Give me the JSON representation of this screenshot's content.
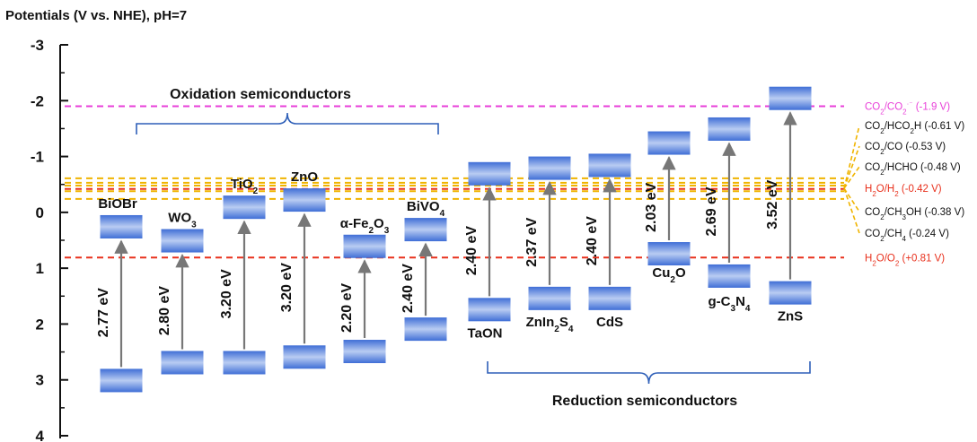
{
  "chart_data": {
    "type": "band-diagram",
    "title": "Potentials (V vs. NHE), pH=7",
    "ylim": [
      -3,
      4
    ],
    "y_axis_inverted": true,
    "y_ticks": [
      -3,
      -2,
      -1,
      0,
      1,
      2,
      3,
      4
    ],
    "y_tick_labels": [
      "-3",
      "-2",
      "-1",
      "0",
      "1",
      "2",
      "3",
      "4"
    ],
    "groups": [
      {
        "label": "Oxidation semiconductors",
        "span": [
          "BiOBr",
          "BiVO4"
        ],
        "position": "top"
      },
      {
        "label": "Reduction semiconductors",
        "span": [
          "TaON",
          "ZnS"
        ],
        "position": "bottom"
      }
    ],
    "semiconductors": [
      {
        "id": "BiOBr",
        "name": "BiOBr",
        "sub": "",
        "sup": "",
        "tail": "",
        "cb": 0.05,
        "vb": 3.22,
        "gap": 2.77,
        "gap_label": "2.77 eV",
        "label_pos": "above-cb"
      },
      {
        "id": "WO3",
        "name": "WO",
        "sub": "3",
        "sup": "",
        "tail": "",
        "cb": 0.3,
        "vb": 2.9,
        "gap": 2.8,
        "gap_label": "2.80 eV",
        "label_pos": "above-cb"
      },
      {
        "id": "TiO2",
        "name": "TiO",
        "sub": "2",
        "sup": "",
        "tail": "",
        "cb": -0.3,
        "vb": 2.9,
        "gap": 3.2,
        "gap_label": "3.20 eV",
        "label_pos": "above-cb"
      },
      {
        "id": "ZnO",
        "name": "ZnO",
        "sub": "",
        "sup": "",
        "tail": "",
        "cb": -0.43,
        "vb": 2.8,
        "gap": 3.2,
        "gap_label": "3.20 eV",
        "label_pos": "above-cb"
      },
      {
        "id": "aFe2O3",
        "name": "α-Fe",
        "sub": "2",
        "sup": "",
        "tail": "O",
        "sub2": "3",
        "cb": 0.4,
        "vb": 2.7,
        "gap": 2.2,
        "gap_label": "2.20 eV",
        "label_pos": "above-cb"
      },
      {
        "id": "BiVO4",
        "name": "BiVO",
        "sub": "4",
        "sup": "",
        "tail": "",
        "cb": 0.1,
        "vb": 2.3,
        "gap": 2.4,
        "gap_label": "2.40 eV",
        "label_pos": "above-cb"
      },
      {
        "id": "TaON",
        "name": "TaON",
        "sub": "",
        "sup": "",
        "tail": "",
        "cb": -0.9,
        "vb": 1.95,
        "gap": 2.4,
        "gap_label": "2.40 eV",
        "label_pos": "below-vb"
      },
      {
        "id": "ZnIn2S4",
        "name": "ZnIn",
        "sub": "2",
        "sup": "",
        "tail": "S",
        "sub2": "4",
        "cb": -1.0,
        "vb": 1.75,
        "gap": 2.37,
        "gap_label": "2.37 eV",
        "label_pos": "below-vb"
      },
      {
        "id": "CdS",
        "name": "CdS",
        "sub": "",
        "sup": "",
        "tail": "",
        "cb": -1.05,
        "vb": 1.75,
        "gap": 2.4,
        "gap_label": "2.40 eV",
        "label_pos": "below-vb"
      },
      {
        "id": "Cu2O",
        "name": "Cu",
        "sub": "2",
        "sup": "",
        "tail": "O",
        "cb": -1.45,
        "vb": 0.95,
        "gap": 2.03,
        "gap_label": "2.03 eV",
        "label_pos": "below-vb"
      },
      {
        "id": "gC3N4",
        "name": "g-C",
        "sub": "3",
        "sup": "",
        "tail": "N",
        "sub2": "4",
        "cb": -1.7,
        "vb": 1.35,
        "gap": 2.69,
        "gap_label": "2.69 eV",
        "label_pos": "below-vb"
      },
      {
        "id": "ZnS",
        "name": "ZnS",
        "sub": "",
        "sup": "",
        "tail": "",
        "cb": -2.25,
        "vb": 1.65,
        "gap": 3.52,
        "gap_label": "3.52 eV",
        "label_pos": "below-vb"
      }
    ],
    "reference_lines": [
      {
        "id": "co2-co2rad",
        "potential": -1.9,
        "color": "#e83fd8",
        "label_parts": [
          [
            "CO",
            ""
          ],
          [
            "2",
            "sub"
          ],
          [
            "/CO",
            ""
          ],
          [
            "2",
            "sub"
          ],
          [
            "·⁻",
            "sup"
          ],
          [
            " (-1.9 V)",
            ""
          ]
        ]
      },
      {
        "id": "co2-hco2h",
        "potential": -0.61,
        "color": "#f0b400",
        "label_parts": [
          [
            "CO",
            ""
          ],
          [
            "2",
            "sub"
          ],
          [
            "/HCO",
            ""
          ],
          [
            "2",
            "sub"
          ],
          [
            "H (-0.61 V)",
            ""
          ]
        ]
      },
      {
        "id": "co2-co",
        "potential": -0.53,
        "color": "#f0b400",
        "label_parts": [
          [
            "CO",
            ""
          ],
          [
            "2",
            "sub"
          ],
          [
            "/CO (-0.53 V)",
            ""
          ]
        ]
      },
      {
        "id": "co2-hcho",
        "potential": -0.48,
        "color": "#f0b400",
        "label_parts": [
          [
            "CO",
            ""
          ],
          [
            "2",
            "sub"
          ],
          [
            "/HCHO (-0.48 V)",
            ""
          ]
        ]
      },
      {
        "id": "h2o-h2",
        "potential": -0.42,
        "color": "#e8301c",
        "label_parts": [
          [
            "H",
            ""
          ],
          [
            "2",
            "sub"
          ],
          [
            "O/H",
            ""
          ],
          [
            "2",
            "sub"
          ],
          [
            " (-0.42 V)",
            ""
          ]
        ]
      },
      {
        "id": "co2-ch3oh",
        "potential": -0.38,
        "color": "#f0b400",
        "label_parts": [
          [
            "CO",
            ""
          ],
          [
            "2",
            "sub"
          ],
          [
            "/CH",
            ""
          ],
          [
            "3",
            "sub"
          ],
          [
            "OH (-0.38 V)",
            ""
          ]
        ]
      },
      {
        "id": "co2-ch4",
        "potential": -0.24,
        "color": "#f0b400",
        "label_parts": [
          [
            "CO",
            ""
          ],
          [
            "2",
            "sub"
          ],
          [
            "/CH",
            ""
          ],
          [
            "4",
            "sub"
          ],
          [
            " (-0.24 V)",
            ""
          ]
        ]
      },
      {
        "id": "h2o-o2",
        "potential": 0.81,
        "color": "#e8301c",
        "label_parts": [
          [
            "H",
            ""
          ],
          [
            "2",
            "sub"
          ],
          [
            "O/O",
            ""
          ],
          [
            "2",
            "sub"
          ],
          [
            " (+0.81 V)",
            ""
          ]
        ]
      }
    ]
  }
}
